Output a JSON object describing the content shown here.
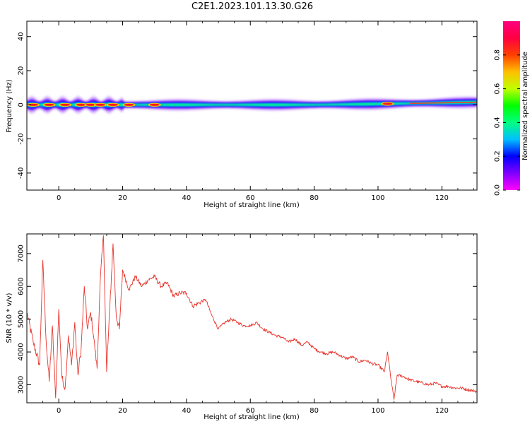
{
  "title": "C2E1.2023.101.13.30.G26",
  "chart_data": [
    {
      "type": "heatmap",
      "xlabel": "Height of straight line (km)",
      "ylabel": "Frequency (Hz)",
      "xlim": [
        -10,
        131
      ],
      "ylim": [
        -50,
        49
      ],
      "xticks": [
        0,
        20,
        40,
        60,
        80,
        100,
        120
      ],
      "yticks": [
        -40,
        -20,
        0,
        20,
        40
      ],
      "colorbar": {
        "label": "Normalized spectral amplitude",
        "range": [
          0,
          1
        ],
        "ticks": [
          "0.0",
          "0.2",
          "0.4",
          "0.6",
          "0.8"
        ],
        "colormap": "gist_rainbow_r",
        "colors": [
          "#ff00ff",
          "#8000ff",
          "#0000ff",
          "#00bfff",
          "#00ff80",
          "#00ff00",
          "#bfff00",
          "#ffbf00",
          "#ff4000",
          "#ff0040",
          "#ff0080"
        ]
      },
      "ridge": {
        "center_freq": [
          [
            -10,
            0
          ],
          [
            0,
            0
          ],
          [
            40,
            0
          ],
          [
            80,
            0
          ],
          [
            100,
            0.5
          ],
          [
            131,
            1.5
          ]
        ],
        "hot_spots_x": [
          -8,
          -3,
          2,
          7,
          10,
          13,
          17,
          22,
          30,
          103
        ]
      }
    },
    {
      "type": "line",
      "xlabel": "Height of straight line (km)",
      "ylabel": "SNR (10 * v/v)",
      "xlim": [
        -10,
        131
      ],
      "ylim": [
        2450,
        7600
      ],
      "xticks": [
        0,
        20,
        40,
        60,
        80,
        100,
        120
      ],
      "yticks": [
        3000,
        4000,
        5000,
        6000,
        7000
      ],
      "series": [
        {
          "color": "#e8352e",
          "x": [
            -10,
            -8,
            -6,
            -5,
            -4,
            -3,
            -2,
            -1,
            0,
            1,
            2,
            3,
            4,
            5,
            6,
            7,
            8,
            9,
            10,
            11,
            12,
            13,
            14,
            15,
            16,
            17,
            18,
            19,
            20,
            22,
            24,
            26,
            28,
            30,
            32,
            34,
            36,
            38,
            40,
            42,
            44,
            46,
            48,
            50,
            52,
            54,
            56,
            58,
            60,
            62,
            64,
            66,
            68,
            70,
            72,
            74,
            76,
            78,
            80,
            82,
            84,
            86,
            88,
            90,
            92,
            94,
            96,
            98,
            100,
            102,
            103,
            104,
            105,
            106,
            108,
            110,
            112,
            114,
            116,
            118,
            120,
            122,
            124,
            126,
            128,
            131
          ],
          "y": [
            5200,
            4300,
            3600,
            6800,
            4400,
            3100,
            4800,
            2600,
            5300,
            3200,
            2900,
            4500,
            3600,
            4900,
            3300,
            4100,
            6000,
            4700,
            5200,
            4400,
            3500,
            6200,
            7550,
            3400,
            5400,
            7300,
            5100,
            4700,
            6500,
            5900,
            6300,
            6000,
            6200,
            6300,
            6000,
            6100,
            5700,
            5800,
            5800,
            5400,
            5500,
            5600,
            5100,
            4700,
            4900,
            5000,
            4900,
            4800,
            4800,
            4900,
            4700,
            4600,
            4500,
            4450,
            4300,
            4400,
            4200,
            4300,
            4100,
            4000,
            3950,
            4000,
            3900,
            3800,
            3850,
            3700,
            3750,
            3650,
            3600,
            3400,
            4000,
            3200,
            2550,
            3300,
            3250,
            3150,
            3100,
            3050,
            3000,
            3050,
            2950,
            2950,
            2900,
            2900,
            2850,
            2800
          ]
        }
      ]
    }
  ]
}
